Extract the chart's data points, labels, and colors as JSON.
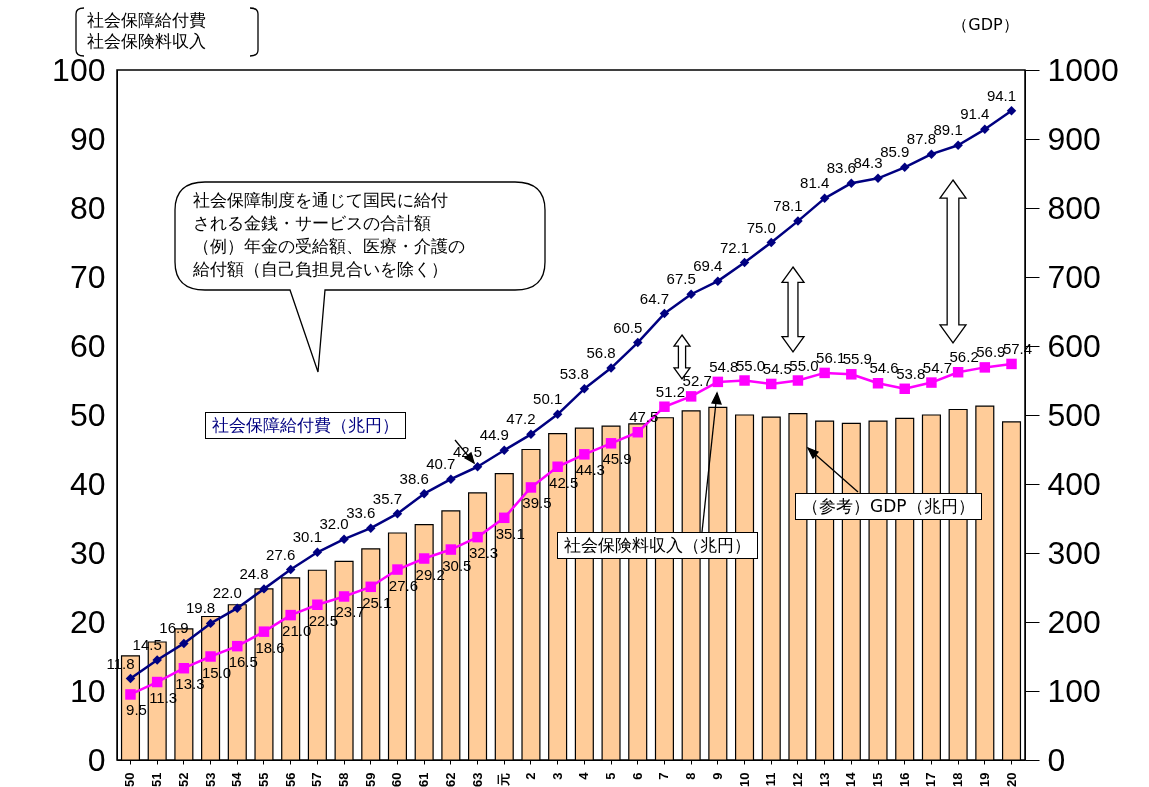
{
  "chart_data": {
    "type": "bar",
    "categories": [
      "50",
      "51",
      "52",
      "53",
      "54",
      "55",
      "56",
      "57",
      "58",
      "59",
      "60",
      "61",
      "62",
      "63",
      "元",
      "2",
      "3",
      "4",
      "5",
      "6",
      "7",
      "8",
      "9",
      "10",
      "11",
      "12",
      "13",
      "14",
      "15",
      "16",
      "17",
      "18",
      "19",
      "20"
    ],
    "ylabel": "社会保障給付費社会保険料収入",
    "y2label": "（GDP）",
    "series": [
      {
        "name": "（参考）GDP（兆円）",
        "axis": "y2",
        "color": "#ffcc99",
        "values": [
          151,
          171,
          190,
          208,
          225,
          248,
          264,
          275,
          288,
          306,
          329,
          341,
          361,
          387,
          415,
          450,
          473,
          481,
          484,
          487,
          496,
          506,
          511,
          500,
          497,
          502,
          491,
          488,
          491,
          495,
          500,
          508,
          513,
          490
        ]
      },
      {
        "name": "社会保障給付費（兆円）",
        "type": "line",
        "color": "#000080",
        "marker": "diamond",
        "values": [
          11.8,
          14.5,
          16.9,
          19.8,
          22.0,
          24.8,
          27.6,
          30.1,
          32.0,
          33.6,
          35.7,
          38.6,
          40.7,
          42.5,
          44.9,
          47.2,
          50.1,
          53.8,
          56.8,
          60.5,
          64.7,
          67.5,
          69.4,
          72.1,
          75.0,
          78.1,
          81.4,
          83.6,
          84.3,
          85.9,
          87.8,
          89.1,
          91.4,
          94.1
        ],
        "value_labels": [
          "11.8",
          "14.5",
          "16.9",
          "19.8",
          "22.0",
          "24.8",
          "27.6",
          "30.1",
          "32.0",
          "33.6",
          "35.7",
          "38.6",
          "40.7",
          "42.5",
          "44.9",
          "47.2",
          "50.1",
          "53.8",
          "56.8",
          "60.5",
          "64.7",
          "67.5",
          "69.4",
          "72.1",
          "75.0",
          "78.1",
          "81.4",
          "83.6",
          "84.3",
          "85.9",
          "87.8",
          "89.1",
          "91.4",
          "94.1"
        ]
      },
      {
        "name": "社会保険料収入（兆円）",
        "type": "line",
        "color": "#ff00ff",
        "marker": "square",
        "values": [
          9.5,
          11.3,
          13.3,
          15.0,
          16.5,
          18.6,
          21.0,
          22.5,
          23.7,
          25.1,
          27.6,
          29.2,
          30.5,
          32.3,
          35.1,
          39.5,
          42.5,
          44.3,
          45.9,
          47.5,
          51.2,
          52.7,
          54.8,
          55.0,
          54.5,
          55.0,
          56.1,
          55.9,
          54.6,
          53.8,
          54.7,
          56.2,
          56.9,
          57.4
        ],
        "value_labels": [
          "9.5",
          "11.3",
          "13.3",
          "15.0",
          "16.5",
          "18.6",
          "21.0",
          "22.5",
          "23.7",
          "25.1",
          "27.6",
          "29.2",
          "30.5",
          "32.3",
          "35.1",
          "39.5",
          "42.5",
          "44.3",
          "45.9",
          "47.5",
          "51.2",
          "52.7",
          "54.8",
          "55.0",
          "54.5",
          "55.0",
          "56.1",
          "55.9",
          "54.6",
          "53.8",
          "54.7",
          "56.2",
          "56.9",
          "57.4"
        ]
      }
    ],
    "ylim": [
      0,
      100
    ],
    "yticks": [
      0,
      10,
      20,
      30,
      40,
      50,
      60,
      70,
      80,
      90,
      100
    ],
    "y2lim": [
      0,
      1000
    ],
    "y2ticks": [
      0,
      100,
      200,
      300,
      400,
      500,
      600,
      700,
      800,
      900,
      1000
    ],
    "annotations": [
      "社会保障制度を通じて国民に給付",
      "される金銭・サービスの合計額",
      "（例）年金の受給額、医療・介護の",
      "給付額（自己負担見合いを除く）"
    ]
  }
}
